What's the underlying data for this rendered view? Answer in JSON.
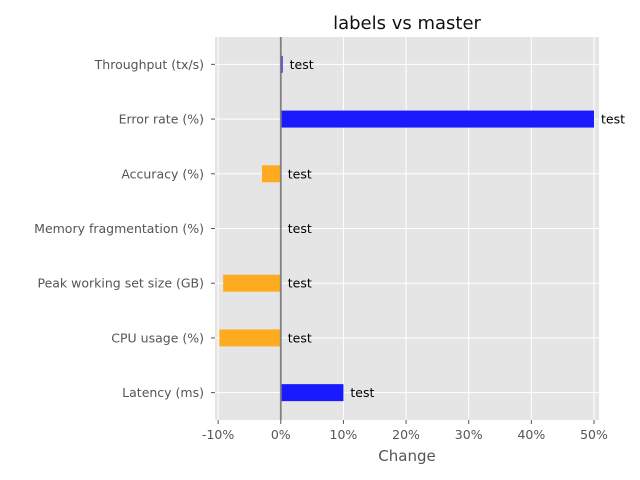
{
  "chart_data": {
    "type": "bar",
    "orientation": "horizontal",
    "title": "labels vs master",
    "xlabel": "Change",
    "ylabel": "",
    "xlim": [
      -10.5,
      50.8
    ],
    "x_ticks": [
      -10,
      0,
      10,
      20,
      30,
      40,
      50
    ],
    "x_tick_labels": [
      "-10%",
      "0%",
      "10%",
      "20%",
      "30%",
      "40%",
      "50%"
    ],
    "categories": [
      "Throughput (tx/s)",
      "Error rate (%)",
      "Accuracy (%)",
      "Memory fragmentation (%)",
      "Peak working set size (GB)",
      "CPU usage (%)",
      "Latency (ms)"
    ],
    "values": [
      0.3,
      50,
      -3,
      0,
      -9.2,
      -9.8,
      10
    ],
    "data_labels": [
      "test",
      "test",
      "test",
      "test",
      "test",
      "test",
      "test"
    ],
    "colors": {
      "increase": "#1a1aff",
      "decrease": "#ffab1f",
      "background": "#e5e5e5",
      "grid": "#ffffff",
      "zero_line": "#808080"
    },
    "grid": true,
    "legend": "none"
  }
}
